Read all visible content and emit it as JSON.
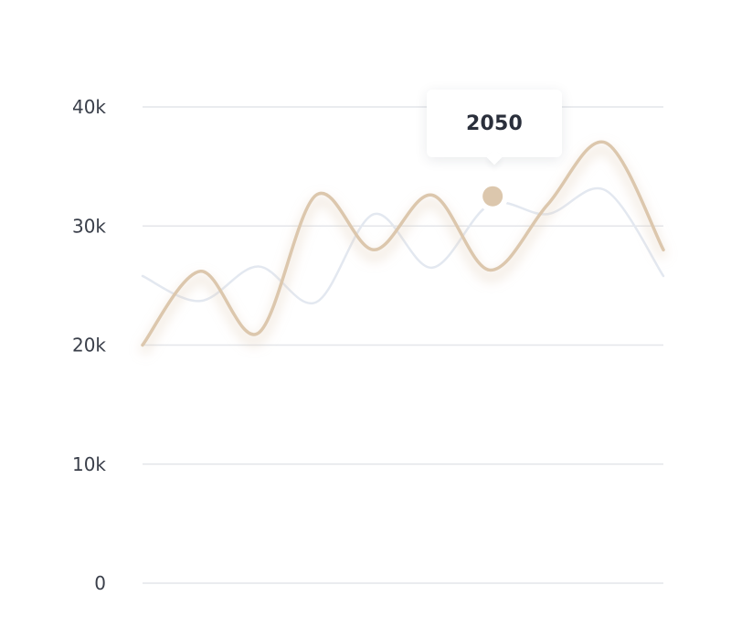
{
  "chart_data": {
    "type": "line",
    "title": "",
    "xlabel": "",
    "ylabel": "",
    "ylim": [
      0,
      40000
    ],
    "yticks": [
      {
        "value": 40000,
        "label": "40k"
      },
      {
        "value": 30000,
        "label": "30k"
      },
      {
        "value": 20000,
        "label": "20k"
      },
      {
        "value": 10000,
        "label": "10k"
      },
      {
        "value": 0,
        "label": "0"
      }
    ],
    "grid": true,
    "legend": "none",
    "x": [
      0,
      1,
      2,
      3,
      4,
      5,
      6,
      7,
      8,
      9
    ],
    "series": [
      {
        "color": "#dcc7ad",
        "values": [
          20000,
          26200,
          21000,
          32600,
          28000,
          32600,
          26300,
          31800,
          37000,
          28000
        ]
      },
      {
        "color": "#e3e8f0",
        "values": [
          25800,
          23700,
          26600,
          23600,
          31000,
          26500,
          31800,
          31000,
          33000,
          25800
        ]
      }
    ],
    "highlight": {
      "series_index": 0,
      "x": 6.05,
      "y": 32500,
      "label": "2050"
    }
  },
  "tooltip": {
    "value": "2050"
  }
}
